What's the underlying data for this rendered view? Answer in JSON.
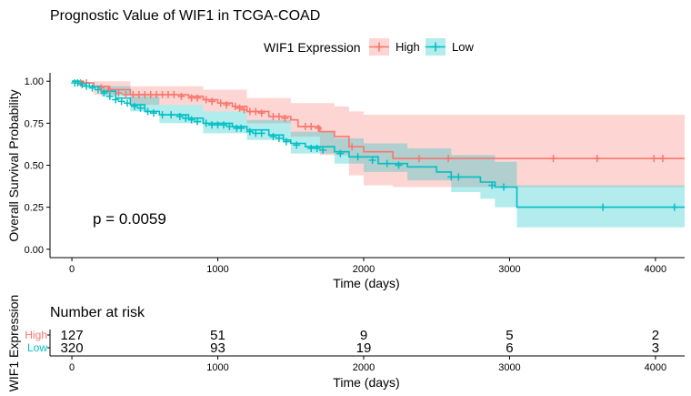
{
  "chart_data": [
    {
      "type": "line",
      "subtype": "kaplan-meier",
      "title": "Prognostic Value of WIF1 in TCGA-COAD",
      "xlabel": "Time (days)",
      "ylabel": "Overall Survival Probability",
      "xlim": [
        -150,
        4200
      ],
      "ylim": [
        -0.05,
        1.05
      ],
      "xticks": [
        0,
        1000,
        2000,
        3000,
        4000
      ],
      "yticks": [
        0.0,
        0.25,
        0.5,
        0.75,
        1.0
      ],
      "ytick_labels": [
        "0.00",
        "0.25",
        "0.50",
        "0.75",
        "1.00"
      ],
      "legend": {
        "title": "WIF1 Expression",
        "position": "top"
      },
      "annotation": "p = 0.0059",
      "series": [
        {
          "name": "High",
          "color": "#F8766D",
          "ci_color": "#F8766D",
          "steps": [
            [
              0,
              1.0
            ],
            [
              80,
              0.99
            ],
            [
              150,
              0.97
            ],
            [
              250,
              0.95
            ],
            [
              400,
              0.92
            ],
            [
              800,
              0.91
            ],
            [
              900,
              0.89
            ],
            [
              1000,
              0.87
            ],
            [
              1100,
              0.85
            ],
            [
              1200,
              0.82
            ],
            [
              1350,
              0.79
            ],
            [
              1500,
              0.77
            ],
            [
              1550,
              0.73
            ],
            [
              1700,
              0.7
            ],
            [
              1800,
              0.67
            ],
            [
              1900,
              0.61
            ],
            [
              2000,
              0.58
            ],
            [
              2200,
              0.54
            ],
            [
              4200,
              0.54
            ]
          ],
          "upper": [
            [
              0,
              1.0
            ],
            [
              150,
              1.0
            ],
            [
              400,
              0.97
            ],
            [
              900,
              0.95
            ],
            [
              1200,
              0.9
            ],
            [
              1500,
              0.87
            ],
            [
              1800,
              0.85
            ],
            [
              1900,
              0.82
            ],
            [
              2000,
              0.8
            ],
            [
              4200,
              0.8
            ]
          ],
          "lower": [
            [
              0,
              1.0
            ],
            [
              150,
              0.92
            ],
            [
              400,
              0.86
            ],
            [
              900,
              0.82
            ],
            [
              1200,
              0.75
            ],
            [
              1500,
              0.67
            ],
            [
              1700,
              0.56
            ],
            [
              1900,
              0.44
            ],
            [
              2000,
              0.38
            ],
            [
              2200,
              0.37
            ],
            [
              4200,
              0.37
            ]
          ],
          "censored": [
            [
              60,
              0.99
            ],
            [
              100,
              0.99
            ],
            [
              200,
              0.96
            ],
            [
              260,
              0.95
            ],
            [
              320,
              0.93
            ],
            [
              370,
              0.92
            ],
            [
              420,
              0.92
            ],
            [
              460,
              0.92
            ],
            [
              500,
              0.92
            ],
            [
              540,
              0.92
            ],
            [
              580,
              0.92
            ],
            [
              620,
              0.92
            ],
            [
              660,
              0.92
            ],
            [
              700,
              0.92
            ],
            [
              750,
              0.91
            ],
            [
              820,
              0.9
            ],
            [
              860,
              0.9
            ],
            [
              920,
              0.89
            ],
            [
              960,
              0.88
            ],
            [
              1020,
              0.87
            ],
            [
              1060,
              0.86
            ],
            [
              1120,
              0.85
            ],
            [
              1150,
              0.84
            ],
            [
              1180,
              0.83
            ],
            [
              1220,
              0.82
            ],
            [
              1260,
              0.82
            ],
            [
              1300,
              0.81
            ],
            [
              1380,
              0.79
            ],
            [
              1420,
              0.79
            ],
            [
              1460,
              0.78
            ],
            [
              1600,
              0.73
            ],
            [
              1640,
              0.73
            ],
            [
              1690,
              0.72
            ],
            [
              1920,
              0.61
            ],
            [
              2380,
              0.54
            ],
            [
              2580,
              0.54
            ],
            [
              3300,
              0.54
            ],
            [
              3600,
              0.54
            ],
            [
              3990,
              0.54
            ],
            [
              4050,
              0.54
            ]
          ]
        },
        {
          "name": "Low",
          "color": "#00BFC4",
          "ci_color": "#00BFC4",
          "steps": [
            [
              0,
              1.0
            ],
            [
              60,
              0.99
            ],
            [
              120,
              0.97
            ],
            [
              200,
              0.94
            ],
            [
              300,
              0.9
            ],
            [
              400,
              0.86
            ],
            [
              500,
              0.82
            ],
            [
              600,
              0.8
            ],
            [
              800,
              0.78
            ],
            [
              900,
              0.75
            ],
            [
              1100,
              0.73
            ],
            [
              1200,
              0.71
            ],
            [
              1350,
              0.68
            ],
            [
              1450,
              0.65
            ],
            [
              1500,
              0.63
            ],
            [
              1600,
              0.61
            ],
            [
              1800,
              0.58
            ],
            [
              1900,
              0.55
            ],
            [
              2100,
              0.51
            ],
            [
              2300,
              0.49
            ],
            [
              2500,
              0.46
            ],
            [
              2600,
              0.43
            ],
            [
              2800,
              0.4
            ],
            [
              2900,
              0.37
            ],
            [
              3050,
              0.25
            ],
            [
              4200,
              0.25
            ]
          ],
          "upper": [
            [
              0,
              1.0
            ],
            [
              200,
              0.97
            ],
            [
              400,
              0.91
            ],
            [
              600,
              0.86
            ],
            [
              900,
              0.82
            ],
            [
              1200,
              0.77
            ],
            [
              1500,
              0.7
            ],
            [
              1800,
              0.66
            ],
            [
              2000,
              0.63
            ],
            [
              2300,
              0.6
            ],
            [
              2600,
              0.56
            ],
            [
              2900,
              0.52
            ],
            [
              3050,
              0.38
            ],
            [
              4200,
              0.38
            ]
          ],
          "lower": [
            [
              0,
              1.0
            ],
            [
              200,
              0.91
            ],
            [
              400,
              0.82
            ],
            [
              600,
              0.75
            ],
            [
              900,
              0.69
            ],
            [
              1200,
              0.65
            ],
            [
              1500,
              0.57
            ],
            [
              1800,
              0.51
            ],
            [
              2000,
              0.46
            ],
            [
              2300,
              0.41
            ],
            [
              2600,
              0.34
            ],
            [
              2800,
              0.3
            ],
            [
              2900,
              0.25
            ],
            [
              3050,
              0.13
            ],
            [
              4200,
              0.13
            ]
          ],
          "censored": [
            [
              20,
              0.99
            ],
            [
              40,
              0.99
            ],
            [
              70,
              0.98
            ],
            [
              100,
              0.97
            ],
            [
              140,
              0.96
            ],
            [
              180,
              0.95
            ],
            [
              220,
              0.93
            ],
            [
              260,
              0.91
            ],
            [
              300,
              0.89
            ],
            [
              340,
              0.88
            ],
            [
              380,
              0.87
            ],
            [
              430,
              0.85
            ],
            [
              470,
              0.84
            ],
            [
              520,
              0.82
            ],
            [
              560,
              0.81
            ],
            [
              620,
              0.8
            ],
            [
              680,
              0.8
            ],
            [
              740,
              0.79
            ],
            [
              780,
              0.78
            ],
            [
              820,
              0.77
            ],
            [
              860,
              0.76
            ],
            [
              920,
              0.75
            ],
            [
              960,
              0.74
            ],
            [
              1000,
              0.74
            ],
            [
              1040,
              0.74
            ],
            [
              1080,
              0.73
            ],
            [
              1130,
              0.72
            ],
            [
              1160,
              0.72
            ],
            [
              1220,
              0.7
            ],
            [
              1260,
              0.69
            ],
            [
              1300,
              0.69
            ],
            [
              1380,
              0.67
            ],
            [
              1420,
              0.66
            ],
            [
              1470,
              0.64
            ],
            [
              1540,
              0.62
            ],
            [
              1640,
              0.6
            ],
            [
              1680,
              0.6
            ],
            [
              1720,
              0.59
            ],
            [
              1840,
              0.57
            ],
            [
              1960,
              0.55
            ],
            [
              2060,
              0.53
            ],
            [
              2160,
              0.51
            ],
            [
              2240,
              0.5
            ],
            [
              2600,
              0.43
            ],
            [
              2650,
              0.43
            ],
            [
              2880,
              0.38
            ],
            [
              2960,
              0.37
            ],
            [
              3640,
              0.25
            ],
            [
              4130,
              0.25
            ]
          ]
        }
      ]
    },
    {
      "type": "table",
      "title": "Number at risk",
      "xlabel": "Time (days)",
      "ylabel": "WIF1 Expression",
      "times": [
        0,
        1000,
        2000,
        3000,
        4000
      ],
      "rows": [
        {
          "name": "High",
          "color": "#F8766D",
          "values": [
            "127",
            "51",
            "9",
            "5",
            "2"
          ]
        },
        {
          "name": "Low",
          "color": "#00BFC4",
          "values": [
            "320",
            "93",
            "19",
            "6",
            "3"
          ]
        }
      ]
    }
  ]
}
